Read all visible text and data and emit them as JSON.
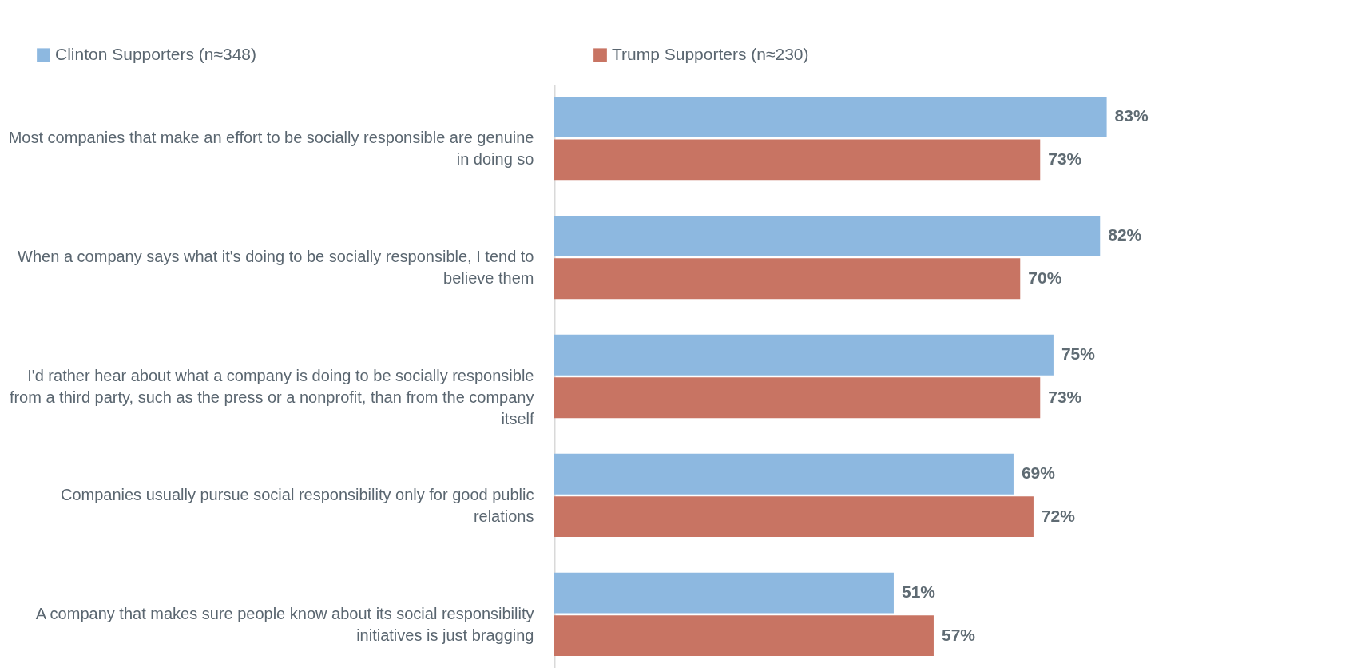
{
  "chart_data": {
    "type": "bar",
    "orientation": "horizontal",
    "categories": [
      "Most companies that make an effort to be socially responsible are genuine in doing so",
      "When a company says what it's doing to be socially responsible, I tend to believe them",
      "I'd rather hear about what a company is doing to be socially responsible from a third party, such as the press or a nonprofit, than from the company itself",
      "Companies usually pursue social responsibility only for good public relations",
      "A company that makes sure people know about its social responsibility initiatives is just bragging"
    ],
    "series": [
      {
        "name": "Clinton Supporters (n≈348)",
        "color": "#8db8e0",
        "values": [
          83,
          82,
          75,
          69,
          51
        ],
        "value_labels": [
          "83%",
          "82%",
          "75%",
          "69%",
          "51%"
        ]
      },
      {
        "name": "Trump Supporters (n≈230)",
        "color": "#c87463",
        "values": [
          73,
          70,
          73,
          72,
          57
        ],
        "value_labels": [
          "73%",
          "70%",
          "73%",
          "72%",
          "57%"
        ]
      }
    ],
    "legend": "top"
  }
}
